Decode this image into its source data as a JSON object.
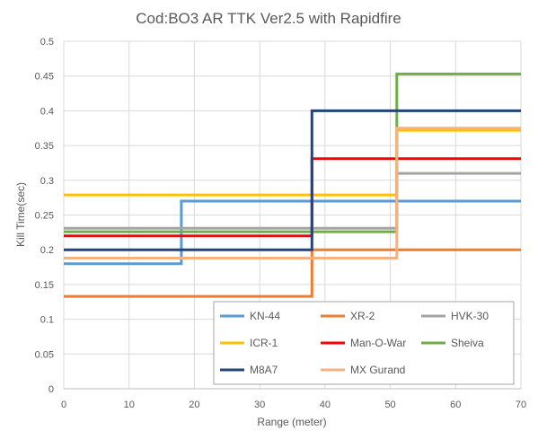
{
  "chart_data": {
    "type": "line",
    "step": true,
    "title": "Cod:BO3 AR TTK Ver2.5 with Rapidfire",
    "xlabel": "Range (meter)",
    "ylabel": "Kill Time(sec)",
    "xlim": [
      0,
      70
    ],
    "ylim": [
      0,
      0.5
    ],
    "xticks": [
      0,
      10,
      20,
      30,
      40,
      50,
      60,
      70
    ],
    "yticks": [
      0,
      0.05,
      0.1,
      0.15,
      0.2,
      0.25,
      0.3,
      0.35,
      0.4,
      0.45,
      0.5
    ],
    "xtick_labels": [
      "0",
      "10",
      "20",
      "30",
      "40",
      "50",
      "60",
      "70"
    ],
    "ytick_labels": [
      "0",
      "0.05",
      "0.1",
      "0.15",
      "0.2",
      "0.25",
      "0.3",
      "0.35",
      "0.4",
      "0.45",
      "0.5"
    ],
    "grid": true,
    "legend_position": "bottom-right",
    "series": [
      {
        "name": "KN-44",
        "color": "#5b9bd5",
        "x": [
          0,
          18,
          18,
          51,
          51,
          70
        ],
        "y": [
          0.18,
          0.18,
          0.27,
          0.27,
          0.27,
          0.27
        ]
      },
      {
        "name": "XR-2",
        "color": "#ed7d31",
        "x": [
          0,
          38,
          38,
          70
        ],
        "y": [
          0.133,
          0.133,
          0.2,
          0.2
        ]
      },
      {
        "name": "HVK-30",
        "color": "#a5a5a5",
        "x": [
          0,
          51,
          51,
          70
        ],
        "y": [
          0.231,
          0.231,
          0.31,
          0.31
        ]
      },
      {
        "name": "ICR-1",
        "color": "#ffc000",
        "x": [
          0,
          51,
          51,
          70
        ],
        "y": [
          0.279,
          0.279,
          0.372,
          0.372
        ]
      },
      {
        "name": "Man-O-War",
        "color": "#ff0000",
        "x": [
          0,
          38,
          38,
          70
        ],
        "y": [
          0.22,
          0.22,
          0.331,
          0.331
        ]
      },
      {
        "name": "Sheiva",
        "color": "#70ad47",
        "x": [
          0,
          51,
          51,
          70
        ],
        "y": [
          0.226,
          0.226,
          0.453,
          0.453
        ]
      },
      {
        "name": "M8A7",
        "color": "#264478",
        "x": [
          0,
          38,
          38,
          70
        ],
        "y": [
          0.2,
          0.2,
          0.4,
          0.4
        ]
      },
      {
        "name": "MX Gurand",
        "color": "#f4b183",
        "x": [
          0,
          51,
          51,
          70
        ],
        "y": [
          0.188,
          0.188,
          0.375,
          0.375
        ]
      }
    ]
  }
}
